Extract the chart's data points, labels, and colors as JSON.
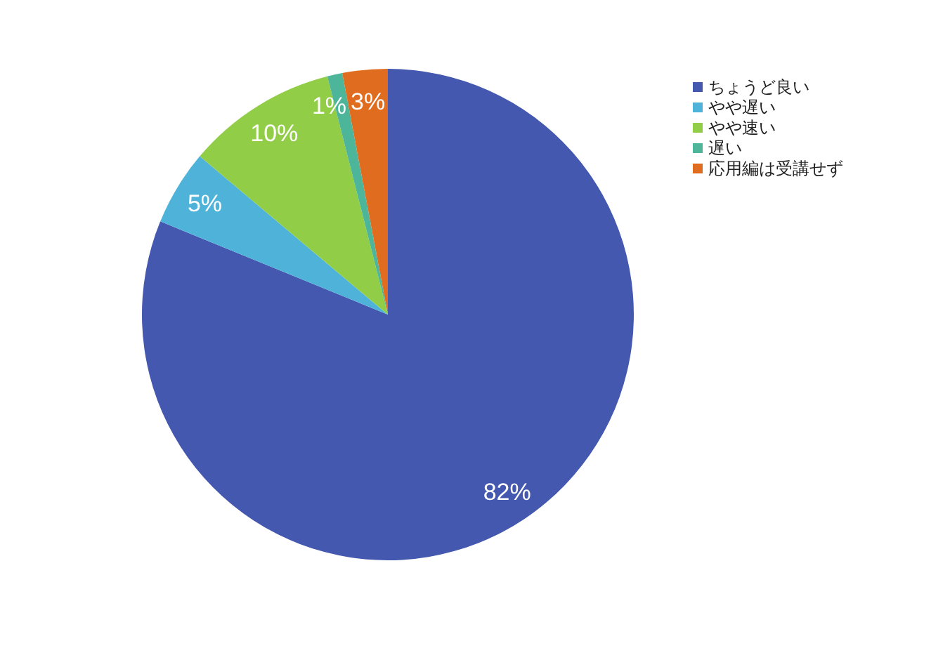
{
  "chart_data": {
    "type": "pie",
    "categories": [
      "ちょうど良い",
      "やや遅い",
      "やや速い",
      "遅い",
      "応用編は受講せず"
    ],
    "values": [
      82,
      5,
      10,
      1,
      3
    ],
    "colors": [
      "#4358ae",
      "#4fb3d9",
      "#92cd48",
      "#4cb59a",
      "#e06c1f"
    ],
    "value_labels": [
      "82%",
      "5%",
      "10%",
      "1%",
      "3%"
    ],
    "legend": "top right"
  }
}
